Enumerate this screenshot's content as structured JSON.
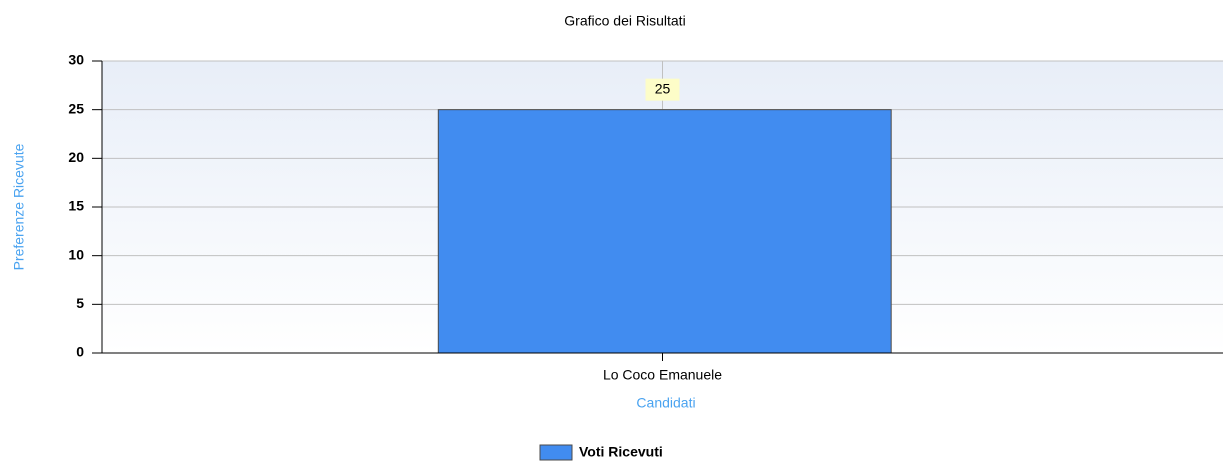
{
  "chart_data": {
    "type": "bar",
    "title": "Grafico dei Risultati",
    "y_label": "Preferenze Ricevute",
    "x_label": "Candidati",
    "categories": [
      "Lo Coco Emanuele"
    ],
    "series": [
      {
        "name": "Voti Ricevuti",
        "color": "#418cf0",
        "values": [
          25
        ]
      }
    ],
    "ylim": [
      0,
      30
    ],
    "yticks": [
      0,
      5,
      10,
      15,
      20,
      25,
      30
    ],
    "grid": true,
    "legend": "bottom"
  }
}
